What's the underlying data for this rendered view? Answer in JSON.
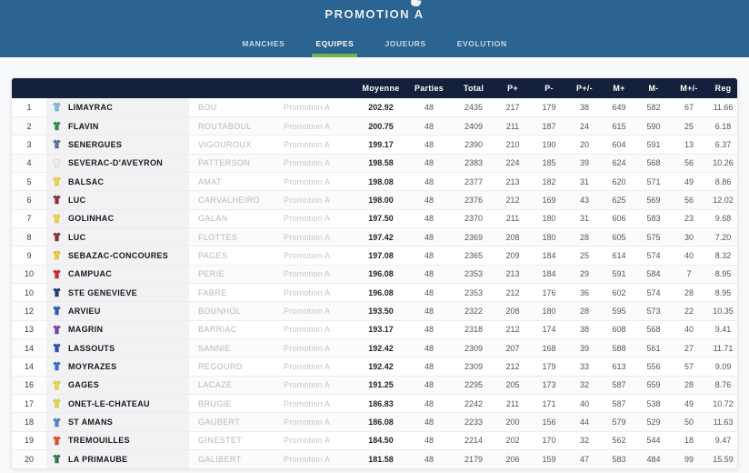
{
  "header": {
    "title": "PROMOTION A",
    "tabs": [
      {
        "label": "MANCHES",
        "active": false
      },
      {
        "label": "EQUIPES",
        "active": true
      },
      {
        "label": "JOUEURS",
        "active": false
      },
      {
        "label": "EVOLUTION",
        "active": false
      }
    ]
  },
  "colors": {
    "header_blue": "#2b6391",
    "table_header_navy": "#15213c",
    "active_tab_green": "#72b649"
  },
  "table": {
    "columns": [
      "Moyenne",
      "Parties",
      "Total",
      "P+",
      "P-",
      "P+/-",
      "M+",
      "M-",
      "M+/-",
      "Reg"
    ],
    "rows": [
      {
        "rank": "1",
        "team": "LIMAYRAC",
        "shirt_color": "#7db9e3",
        "player": "BOU",
        "division": "Promotion A",
        "moyenne": "202.92",
        "parties": "48",
        "total": "2435",
        "p_plus": "217",
        "p_minus": "179",
        "p_diff": "38",
        "m_plus": "649",
        "m_minus": "582",
        "m_diff": "67",
        "reg": "11.66"
      },
      {
        "rank": "2",
        "team": "FLAVIN",
        "shirt_color": "#2f8f52",
        "player": "ROUTABOUL",
        "division": "Promotion A",
        "moyenne": "200.75",
        "parties": "48",
        "total": "2409",
        "p_plus": "211",
        "p_minus": "187",
        "p_diff": "24",
        "m_plus": "615",
        "m_minus": "590",
        "m_diff": "25",
        "reg": "6.18"
      },
      {
        "rank": "3",
        "team": "SENERGUES",
        "shirt_color": "#56719f",
        "player": "VIGOUROUX",
        "division": "Promotion A",
        "moyenne": "199.17",
        "parties": "48",
        "total": "2390",
        "p_plus": "210",
        "p_minus": "190",
        "p_diff": "20",
        "m_plus": "604",
        "m_minus": "591",
        "m_diff": "13",
        "reg": "6.37"
      },
      {
        "rank": "4",
        "team": "SEVERAC-D'AVEYRON",
        "shirt_color": "#f2f0ec",
        "player": "PATTERSON",
        "division": "Promotion A",
        "moyenne": "198.58",
        "parties": "48",
        "total": "2383",
        "p_plus": "224",
        "p_minus": "185",
        "p_diff": "39",
        "m_plus": "624",
        "m_minus": "568",
        "m_diff": "56",
        "reg": "10.26"
      },
      {
        "rank": "5",
        "team": "BALSAC",
        "shirt_color": "#f0d83c",
        "player": "AMAT",
        "division": "Promotion A",
        "moyenne": "198.08",
        "parties": "48",
        "total": "2377",
        "p_plus": "213",
        "p_minus": "182",
        "p_diff": "31",
        "m_plus": "620",
        "m_minus": "571",
        "m_diff": "49",
        "reg": "8.86"
      },
      {
        "rank": "6",
        "team": "LUC",
        "shirt_color": "#8e3038",
        "player": "CARVALHEIRO",
        "division": "Promotion A",
        "moyenne": "198.00",
        "parties": "48",
        "total": "2376",
        "p_plus": "212",
        "p_minus": "169",
        "p_diff": "43",
        "m_plus": "625",
        "m_minus": "569",
        "m_diff": "56",
        "reg": "12.02"
      },
      {
        "rank": "7",
        "team": "GOLINHAC",
        "shirt_color": "#f0d83c",
        "player": "GALAN",
        "division": "Promotion A",
        "moyenne": "197.50",
        "parties": "48",
        "total": "2370",
        "p_plus": "211",
        "p_minus": "180",
        "p_diff": "31",
        "m_plus": "606",
        "m_minus": "583",
        "m_diff": "23",
        "reg": "9.68"
      },
      {
        "rank": "8",
        "team": "LUC",
        "shirt_color": "#8e3038",
        "player": "FLOTTES",
        "division": "Promotion A",
        "moyenne": "197.42",
        "parties": "48",
        "total": "2369",
        "p_plus": "208",
        "p_minus": "180",
        "p_diff": "28",
        "m_plus": "605",
        "m_minus": "575",
        "m_diff": "30",
        "reg": "7.20"
      },
      {
        "rank": "9",
        "team": "SEBAZAC-CONCOURES",
        "shirt_color": "#f3c832",
        "player": "PAGES",
        "division": "Promotion A",
        "moyenne": "197.08",
        "parties": "48",
        "total": "2365",
        "p_plus": "209",
        "p_minus": "184",
        "p_diff": "25",
        "m_plus": "614",
        "m_minus": "574",
        "m_diff": "40",
        "reg": "8.32"
      },
      {
        "rank": "10",
        "team": "CAMPUAC",
        "shirt_color": "#d42330",
        "player": "PERIE",
        "division": "Promotion A",
        "moyenne": "196.08",
        "parties": "48",
        "total": "2353",
        "p_plus": "213",
        "p_minus": "184",
        "p_diff": "29",
        "m_plus": "591",
        "m_minus": "584",
        "m_diff": "7",
        "reg": "8.95"
      },
      {
        "rank": "10",
        "team": "STE GENEVIEVE",
        "shirt_color": "#223d77",
        "player": "FABRE",
        "division": "Promotion A",
        "moyenne": "196.08",
        "parties": "48",
        "total": "2353",
        "p_plus": "212",
        "p_minus": "176",
        "p_diff": "36",
        "m_plus": "602",
        "m_minus": "574",
        "m_diff": "28",
        "reg": "8.95"
      },
      {
        "rank": "12",
        "team": "ARVIEU",
        "shirt_color": "#2b5cb8",
        "player": "BOUNHOL",
        "division": "Promotion A",
        "moyenne": "193.50",
        "parties": "48",
        "total": "2322",
        "p_plus": "208",
        "p_minus": "180",
        "p_diff": "28",
        "m_plus": "595",
        "m_minus": "573",
        "m_diff": "22",
        "reg": "10.35"
      },
      {
        "rank": "13",
        "team": "MAGRIN",
        "shirt_color": "#7d43a6",
        "player": "BARRIAC",
        "division": "Promotion A",
        "moyenne": "193.17",
        "parties": "48",
        "total": "2318",
        "p_plus": "212",
        "p_minus": "174",
        "p_diff": "38",
        "m_plus": "608",
        "m_minus": "568",
        "m_diff": "40",
        "reg": "9.41"
      },
      {
        "rank": "14",
        "team": "LASSOUTS",
        "shirt_color": "#2853b4",
        "player": "SANNIE",
        "division": "Promotion A",
        "moyenne": "192.42",
        "parties": "48",
        "total": "2309",
        "p_plus": "207",
        "p_minus": "168",
        "p_diff": "39",
        "m_plus": "588",
        "m_minus": "561",
        "m_diff": "27",
        "reg": "11.71"
      },
      {
        "rank": "14",
        "team": "MOYRAZES",
        "shirt_color": "#3f6fd1",
        "player": "REGOURD",
        "division": "Promotion A",
        "moyenne": "192.42",
        "parties": "48",
        "total": "2309",
        "p_plus": "212",
        "p_minus": "179",
        "p_diff": "33",
        "m_plus": "613",
        "m_minus": "556",
        "m_diff": "57",
        "reg": "9.09"
      },
      {
        "rank": "16",
        "team": "GAGES",
        "shirt_color": "#f0d83c",
        "player": "LACAZE",
        "division": "Promotion A",
        "moyenne": "191.25",
        "parties": "48",
        "total": "2295",
        "p_plus": "205",
        "p_minus": "173",
        "p_diff": "32",
        "m_plus": "587",
        "m_minus": "559",
        "m_diff": "28",
        "reg": "8.76"
      },
      {
        "rank": "17",
        "team": "ONET-LE-CHATEAU",
        "shirt_color": "#edd23e",
        "player": "BRUGIE",
        "division": "Promotion A",
        "moyenne": "186.83",
        "parties": "48",
        "total": "2242",
        "p_plus": "211",
        "p_minus": "171",
        "p_diff": "40",
        "m_plus": "587",
        "m_minus": "538",
        "m_diff": "49",
        "reg": "10.72"
      },
      {
        "rank": "18",
        "team": "ST AMANS",
        "shirt_color": "#4f86c2",
        "player": "GAUBERT",
        "division": "Promotion A",
        "moyenne": "186.08",
        "parties": "48",
        "total": "2233",
        "p_plus": "200",
        "p_minus": "156",
        "p_diff": "44",
        "m_plus": "579",
        "m_minus": "529",
        "m_diff": "50",
        "reg": "11.63"
      },
      {
        "rank": "19",
        "team": "TREMOUILLES",
        "shirt_color": "#e64b2c",
        "player": "GINESTET",
        "division": "Promotion A",
        "moyenne": "184.50",
        "parties": "48",
        "total": "2214",
        "p_plus": "202",
        "p_minus": "170",
        "p_diff": "32",
        "m_plus": "562",
        "m_minus": "544",
        "m_diff": "18",
        "reg": "9.47"
      },
      {
        "rank": "20",
        "team": "LA PRIMAUBE",
        "shirt_color": "#2f7d4f",
        "player": "GALIBERT",
        "division": "Promotion A",
        "moyenne": "181.58",
        "parties": "48",
        "total": "2179",
        "p_plus": "206",
        "p_minus": "159",
        "p_diff": "47",
        "m_plus": "583",
        "m_minus": "484",
        "m_diff": "99",
        "reg": "15.59"
      }
    ]
  }
}
